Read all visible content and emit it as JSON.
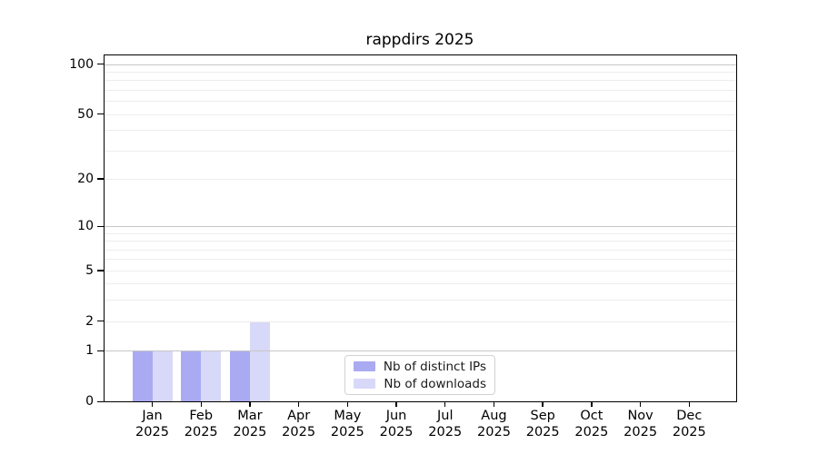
{
  "chart_data": {
    "type": "bar",
    "title": "rappdirs 2025",
    "scale": "log1p",
    "categories": [
      "Jan",
      "Feb",
      "Mar",
      "Apr",
      "May",
      "Jun",
      "Jul",
      "Aug",
      "Sep",
      "Oct",
      "Nov",
      "Dec"
    ],
    "category_year": "2025",
    "series": [
      {
        "name": "Nb of distinct IPs",
        "color": "#aaaaf2",
        "values": [
          1,
          1,
          1,
          0,
          0,
          0,
          0,
          0,
          0,
          0,
          0,
          0
        ]
      },
      {
        "name": "Nb of downloads",
        "color": "#d8d9f8",
        "values": [
          1,
          1,
          2,
          0,
          0,
          0,
          0,
          0,
          0,
          0,
          0,
          0
        ]
      }
    ],
    "y_ticks": [
      0,
      1,
      2,
      5,
      10,
      20,
      50,
      100
    ],
    "y_major_gridlines": [
      1,
      10,
      100
    ],
    "y_minor_gridlines": [
      2,
      3,
      4,
      5,
      6,
      7,
      8,
      9,
      20,
      30,
      40,
      50,
      60,
      70,
      80,
      90
    ],
    "ylim": [
      0,
      114
    ],
    "xlabel": "",
    "ylabel": "",
    "grid": true,
    "legend_position": "lower center",
    "colors": {
      "grid_minor": "#ededed",
      "grid_major": "#c6c6c6",
      "spine": "#000000",
      "text": "#000000"
    }
  }
}
